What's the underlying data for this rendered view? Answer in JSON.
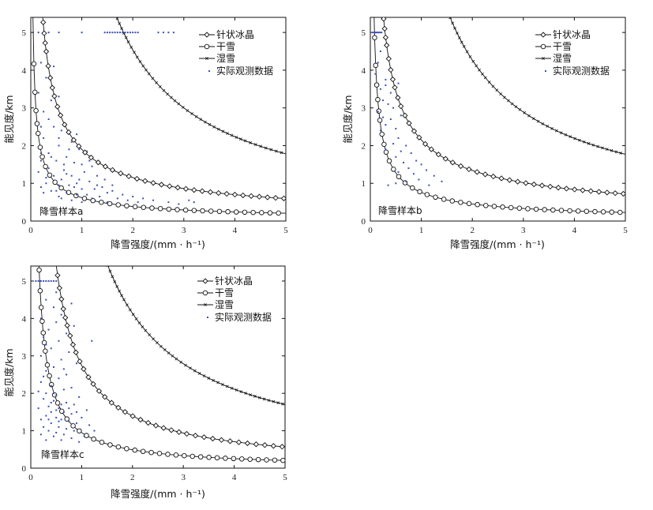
{
  "chart_data": [
    {
      "type": "line",
      "annotation": "降雪样本a",
      "xlabel": "降雪强度/(mm · h⁻¹)",
      "ylabel": "能见度/km",
      "xlim": [
        0,
        5
      ],
      "ylim": [
        0,
        5.4
      ],
      "xticks": [
        "0",
        "1",
        "2",
        "3",
        "4",
        "5"
      ],
      "yticks": [
        "0",
        "1",
        "2",
        "3",
        "4",
        "5"
      ],
      "grid": false,
      "legend_position": "top-right",
      "series": [
        {
          "name": "针状冰晶",
          "style": "diamond-line",
          "k": 1.9,
          "b": 0.72
        },
        {
          "name": "干雪",
          "style": "circle-line",
          "k": 0.62,
          "b": 0.68
        },
        {
          "name": "湿雪",
          "style": "x-line",
          "k": 9.2,
          "b": 1.02
        },
        {
          "name": "实际观测数据",
          "style": "points",
          "points": [
            [
              0.15,
              5
            ],
            [
              0.35,
              5
            ],
            [
              0.55,
              5
            ],
            [
              1.0,
              5
            ],
            [
              1.45,
              5
            ],
            [
              1.5,
              5
            ],
            [
              1.55,
              5
            ],
            [
              1.6,
              5
            ],
            [
              1.65,
              5
            ],
            [
              1.7,
              5
            ],
            [
              1.75,
              5
            ],
            [
              1.8,
              5
            ],
            [
              1.85,
              5
            ],
            [
              1.9,
              5
            ],
            [
              1.95,
              5
            ],
            [
              2.0,
              5
            ],
            [
              2.05,
              5
            ],
            [
              2.1,
              5
            ],
            [
              2.5,
              5
            ],
            [
              2.6,
              5
            ],
            [
              2.7,
              5
            ],
            [
              2.8,
              5
            ],
            [
              0.2,
              4.2
            ],
            [
              0.45,
              4.1
            ],
            [
              0.3,
              3.8
            ],
            [
              0.15,
              3.4
            ],
            [
              0.4,
              3.2
            ],
            [
              0.55,
              3.3
            ],
            [
              0.25,
              2.9
            ],
            [
              0.35,
              2.7
            ],
            [
              0.6,
              2.4
            ],
            [
              0.2,
              2.5
            ],
            [
              0.45,
              2.5
            ],
            [
              0.9,
              2.3
            ],
            [
              0.8,
              2.1
            ],
            [
              0.25,
              2.2
            ],
            [
              0.55,
              2.0
            ],
            [
              0.95,
              1.9
            ],
            [
              1.1,
              1.85
            ],
            [
              0.35,
              1.8
            ],
            [
              0.7,
              1.7
            ],
            [
              0.2,
              1.6
            ],
            [
              0.5,
              1.6
            ],
            [
              0.85,
              1.55
            ],
            [
              1.0,
              1.5
            ],
            [
              1.2,
              1.45
            ],
            [
              0.35,
              1.4
            ],
            [
              0.65,
              1.35
            ],
            [
              1.05,
              1.3
            ],
            [
              0.15,
              1.3
            ],
            [
              0.45,
              1.2
            ],
            [
              0.8,
              1.2
            ],
            [
              1.3,
              1.2
            ],
            [
              0.6,
              1.1
            ],
            [
              0.95,
              1.1
            ],
            [
              1.15,
              1.05
            ],
            [
              0.3,
              1.0
            ],
            [
              0.55,
              0.95
            ],
            [
              0.75,
              0.95
            ],
            [
              1.4,
              0.9
            ],
            [
              0.2,
              0.9
            ],
            [
              1.0,
              0.85
            ],
            [
              1.25,
              0.85
            ],
            [
              1.6,
              0.8
            ],
            [
              0.4,
              0.8
            ],
            [
              0.7,
              0.75
            ],
            [
              1.5,
              0.75
            ],
            [
              1.8,
              0.7
            ],
            [
              0.9,
              0.7
            ],
            [
              1.1,
              0.7
            ],
            [
              0.55,
              0.65
            ],
            [
              1.35,
              0.65
            ],
            [
              2.0,
              0.65
            ],
            [
              1.7,
              0.6
            ],
            [
              2.2,
              0.6
            ],
            [
              1.2,
              0.6
            ],
            [
              0.8,
              0.55
            ],
            [
              1.9,
              0.55
            ],
            [
              2.4,
              0.55
            ],
            [
              3.1,
              0.55
            ],
            [
              3.2,
              0.5
            ],
            [
              2.7,
              0.5
            ],
            [
              1.5,
              0.5
            ],
            [
              2.1,
              0.5
            ],
            [
              1.0,
              0.5
            ],
            [
              2.9,
              0.45
            ],
            [
              0.65,
              1.5
            ],
            [
              0.4,
              1.7
            ],
            [
              0.85,
              0.9
            ],
            [
              1.15,
              1.6
            ],
            [
              0.3,
              1.15
            ],
            [
              0.7,
              1.25
            ],
            [
              1.45,
              1.1
            ],
            [
              0.5,
              0.8
            ],
            [
              0.25,
              0.75
            ],
            [
              0.9,
              1.0
            ],
            [
              1.3,
              0.95
            ],
            [
              0.6,
              0.6
            ],
            [
              1.6,
              0.95
            ],
            [
              0.2,
              1.8
            ],
            [
              0.75,
              1.9
            ],
            [
              0.55,
              2.2
            ]
          ]
        }
      ]
    },
    {
      "type": "line",
      "annotation": "降雪样本b",
      "xlabel": "降雪强度/(mm · h⁻¹)",
      "ylabel": "能见度/km",
      "xlim": [
        0,
        5
      ],
      "ylim": [
        0,
        5.4
      ],
      "xticks": [
        "0",
        "1",
        "2",
        "3",
        "4",
        "5"
      ],
      "yticks": [
        "0",
        "1",
        "2",
        "3",
        "4",
        "5"
      ],
      "grid": false,
      "legend_position": "top-right",
      "series": [
        {
          "name": "针状冰晶",
          "style": "diamond-line",
          "k": 2.15,
          "b": 0.68
        },
        {
          "name": "干雪",
          "style": "circle-line",
          "k": 0.76,
          "b": 0.75
        },
        {
          "name": "湿雪",
          "style": "x-line",
          "k": 8.3,
          "b": 0.96
        },
        {
          "name": "实际观测数据",
          "style": "points",
          "points": [
            [
              0.05,
              5
            ],
            [
              0.08,
              5
            ],
            [
              0.1,
              5
            ],
            [
              0.13,
              5
            ],
            [
              0.16,
              5
            ],
            [
              0.19,
              5
            ],
            [
              0.22,
              5
            ],
            [
              0.2,
              4.5
            ],
            [
              0.15,
              4.2
            ],
            [
              0.1,
              3.9
            ],
            [
              0.3,
              3.75
            ],
            [
              0.55,
              3.65
            ],
            [
              0.2,
              3.5
            ],
            [
              0.25,
              3.2
            ],
            [
              0.35,
              3.1
            ],
            [
              0.15,
              2.9
            ],
            [
              0.4,
              2.7
            ],
            [
              0.3,
              2.55
            ],
            [
              0.5,
              2.45
            ],
            [
              0.2,
              2.4
            ],
            [
              0.55,
              2.2
            ],
            [
              0.45,
              2.05
            ],
            [
              0.7,
              2.0
            ],
            [
              0.3,
              1.9
            ],
            [
              0.6,
              1.85
            ],
            [
              0.8,
              1.8
            ],
            [
              0.5,
              1.7
            ],
            [
              0.9,
              1.6
            ],
            [
              0.65,
              1.55
            ],
            [
              1.0,
              1.5
            ],
            [
              0.75,
              1.4
            ],
            [
              1.1,
              1.35
            ],
            [
              0.55,
              1.3
            ],
            [
              0.85,
              1.25
            ],
            [
              1.25,
              1.2
            ],
            [
              0.95,
              1.1
            ],
            [
              1.4,
              1.05
            ],
            [
              0.7,
              1.05
            ],
            [
              1.15,
              0.95
            ],
            [
              0.35,
              0.95
            ],
            [
              0.5,
              1.0
            ],
            [
              0.25,
              2.75
            ],
            [
              0.4,
              3.4
            ],
            [
              0.6,
              2.8
            ],
            [
              0.3,
              3.6
            ],
            [
              0.45,
              3.0
            ]
          ]
        }
      ]
    },
    {
      "type": "line",
      "annotation": "降雪样本c",
      "xlabel": "降雪强度/(mm · h⁻¹)",
      "ylabel": "能见度/km",
      "xlim": [
        0,
        5
      ],
      "ylim": [
        0,
        5.4
      ],
      "xticks": [
        "0",
        "1",
        "2",
        "3",
        "4",
        "5"
      ],
      "yticks": [
        "0",
        "1",
        "2",
        "3",
        "4",
        "5"
      ],
      "grid": false,
      "legend_position": "top-right",
      "series": [
        {
          "name": "针状冰晶",
          "style": "diamond-line",
          "k": 2.75,
          "b": 0.98
        },
        {
          "name": "干雪",
          "style": "circle-line",
          "k": 0.95,
          "b": 0.95
        },
        {
          "name": "湿雪",
          "style": "x-line",
          "k": 8.1,
          "b": 0.97
        },
        {
          "name": "实际观测数据",
          "style": "points",
          "points": [
            [
              0.1,
              5
            ],
            [
              0.15,
              5
            ],
            [
              0.2,
              5
            ],
            [
              0.25,
              5
            ],
            [
              0.3,
              5
            ],
            [
              0.35,
              5
            ],
            [
              0.4,
              5
            ],
            [
              0.45,
              5
            ],
            [
              0.5,
              5
            ],
            [
              0.5,
              4.7
            ],
            [
              0.3,
              4.5
            ],
            [
              0.8,
              4.4
            ],
            [
              0.45,
              4.3
            ],
            [
              0.6,
              4.1
            ],
            [
              0.2,
              4.0
            ],
            [
              0.5,
              3.9
            ],
            [
              0.85,
              3.8
            ],
            [
              0.35,
              3.7
            ],
            [
              0.7,
              3.6
            ],
            [
              0.25,
              3.5
            ],
            [
              1.2,
              3.4
            ],
            [
              0.55,
              3.4
            ],
            [
              0.4,
              3.2
            ],
            [
              0.75,
              3.1
            ],
            [
              0.2,
              3.0
            ],
            [
              0.6,
              2.9
            ],
            [
              0.9,
              2.8
            ],
            [
              0.45,
              2.7
            ],
            [
              0.3,
              2.6
            ],
            [
              0.7,
              2.5
            ],
            [
              0.55,
              2.4
            ],
            [
              0.2,
              2.3
            ],
            [
              0.4,
              2.2
            ],
            [
              0.8,
              2.15
            ],
            [
              0.65,
              2.1
            ],
            [
              0.3,
              2.0
            ],
            [
              0.5,
              1.95
            ],
            [
              0.95,
              1.9
            ],
            [
              0.25,
              1.85
            ],
            [
              0.45,
              1.8
            ],
            [
              0.7,
              1.75
            ],
            [
              0.85,
              1.7
            ],
            [
              0.35,
              1.65
            ],
            [
              0.55,
              1.6
            ],
            [
              0.15,
              1.6
            ],
            [
              1.1,
              1.55
            ],
            [
              0.4,
              1.5
            ],
            [
              0.65,
              1.5
            ],
            [
              0.8,
              1.45
            ],
            [
              0.3,
              1.4
            ],
            [
              0.5,
              1.35
            ],
            [
              1.0,
              1.35
            ],
            [
              0.2,
              1.3
            ],
            [
              0.6,
              1.3
            ],
            [
              0.75,
              1.25
            ],
            [
              0.9,
              1.2
            ],
            [
              0.4,
              1.2
            ],
            [
              1.15,
              1.15
            ],
            [
              0.55,
              1.1
            ],
            [
              0.25,
              1.1
            ],
            [
              0.7,
              1.05
            ],
            [
              0.35,
              1.0
            ],
            [
              0.85,
              1.0
            ],
            [
              0.5,
              0.95
            ],
            [
              0.65,
              0.9
            ],
            [
              0.2,
              0.9
            ],
            [
              1.05,
              0.85
            ],
            [
              0.45,
              0.85
            ],
            [
              0.8,
              0.8
            ],
            [
              0.6,
              0.75
            ],
            [
              0.3,
              0.75
            ],
            [
              0.95,
              0.7
            ],
            [
              0.75,
              1.6
            ],
            [
              0.45,
              2.0
            ],
            [
              0.6,
              1.7
            ],
            [
              0.35,
              1.3
            ],
            [
              0.5,
              1.55
            ],
            [
              0.4,
              1.75
            ],
            [
              0.55,
              1.25
            ],
            [
              0.25,
              2.45
            ],
            [
              0.65,
              2.65
            ],
            [
              0.3,
              3.3
            ],
            [
              0.15,
              2.05
            ],
            [
              1.25,
              1.0
            ],
            [
              0.9,
              1.5
            ]
          ]
        }
      ]
    }
  ]
}
